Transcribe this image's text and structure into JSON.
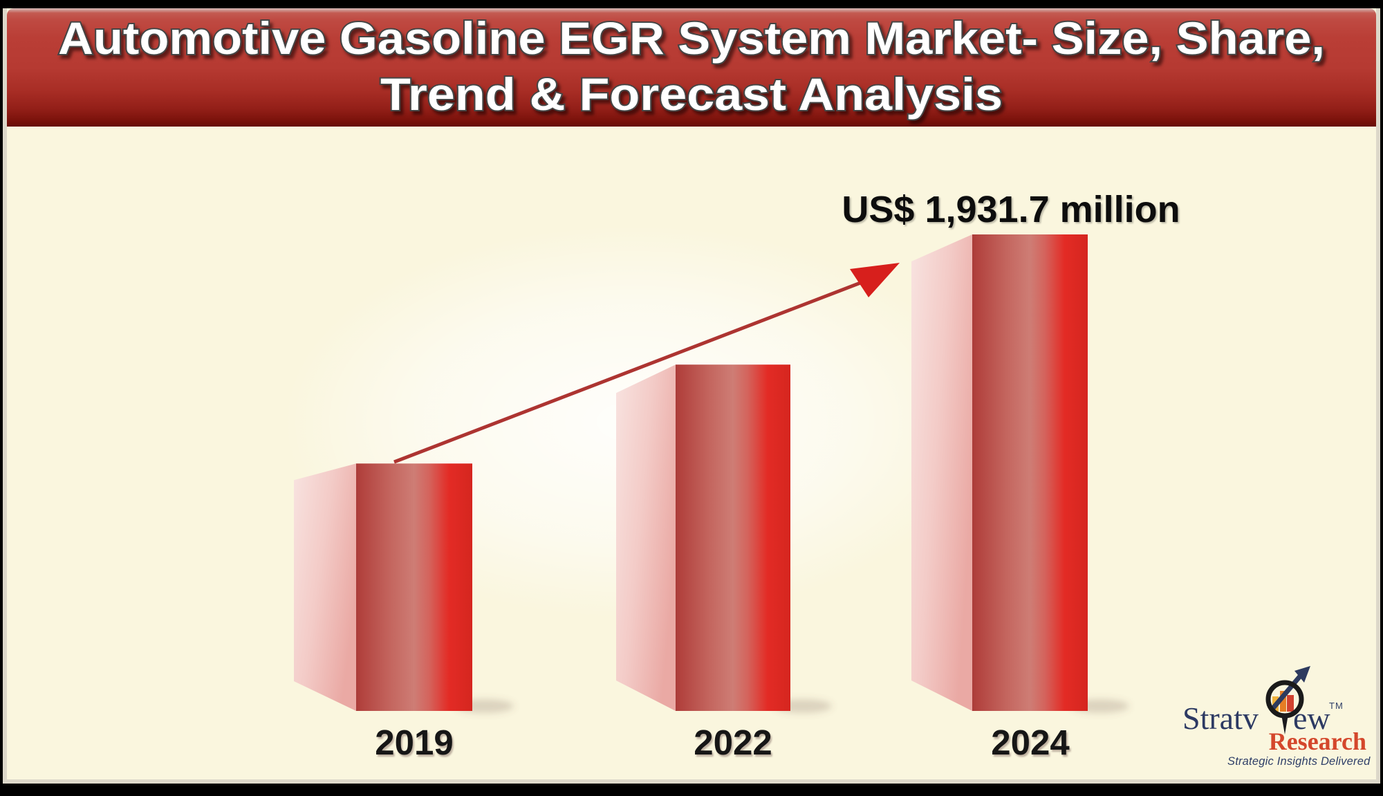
{
  "title": {
    "line1": "Automotive Gasoline EGR System Market- Size, Share,",
    "line2": "Trend & Forecast Analysis"
  },
  "chart_data": {
    "type": "bar",
    "categories": [
      "2019",
      "2022",
      "2024"
    ],
    "values": [
      1003,
      1404,
      1931.7
    ],
    "value_unit": "US$ million",
    "ylim": [
      0,
      1931.7
    ],
    "grid": false,
    "legend": false,
    "annotation": "US$ 1,931.7 million",
    "annotation_target": "2024",
    "trend_arrow": true,
    "bar_front_gradient": [
      "#aa3c39",
      "#c4665f",
      "#ce7d75",
      "#e32b25",
      "#d5261f"
    ],
    "bar_side_gradient": [
      "#f8e3e0",
      "#eaa9a4"
    ],
    "background": "#faf6de"
  },
  "logo": {
    "brand_left": "Stratv",
    "brand_right": "ew",
    "trademark": "TM",
    "subbrand": "Research",
    "tagline": "Strategic Insights Delivered",
    "navy": "#2d3a63",
    "red": "#d4472c",
    "icon_bar_colors": [
      "#f0b23c",
      "#e57e25",
      "#d14230"
    ]
  },
  "colors": {
    "banner_red": "#b63a32",
    "banner_dark_edge": "#7a120b",
    "frame_black": "#000000",
    "inner_line": "#ddd8ca",
    "arrow_shaft_red": "#ad3431",
    "arrowhead_red": "#d71f1c",
    "label_black": "#141414"
  }
}
